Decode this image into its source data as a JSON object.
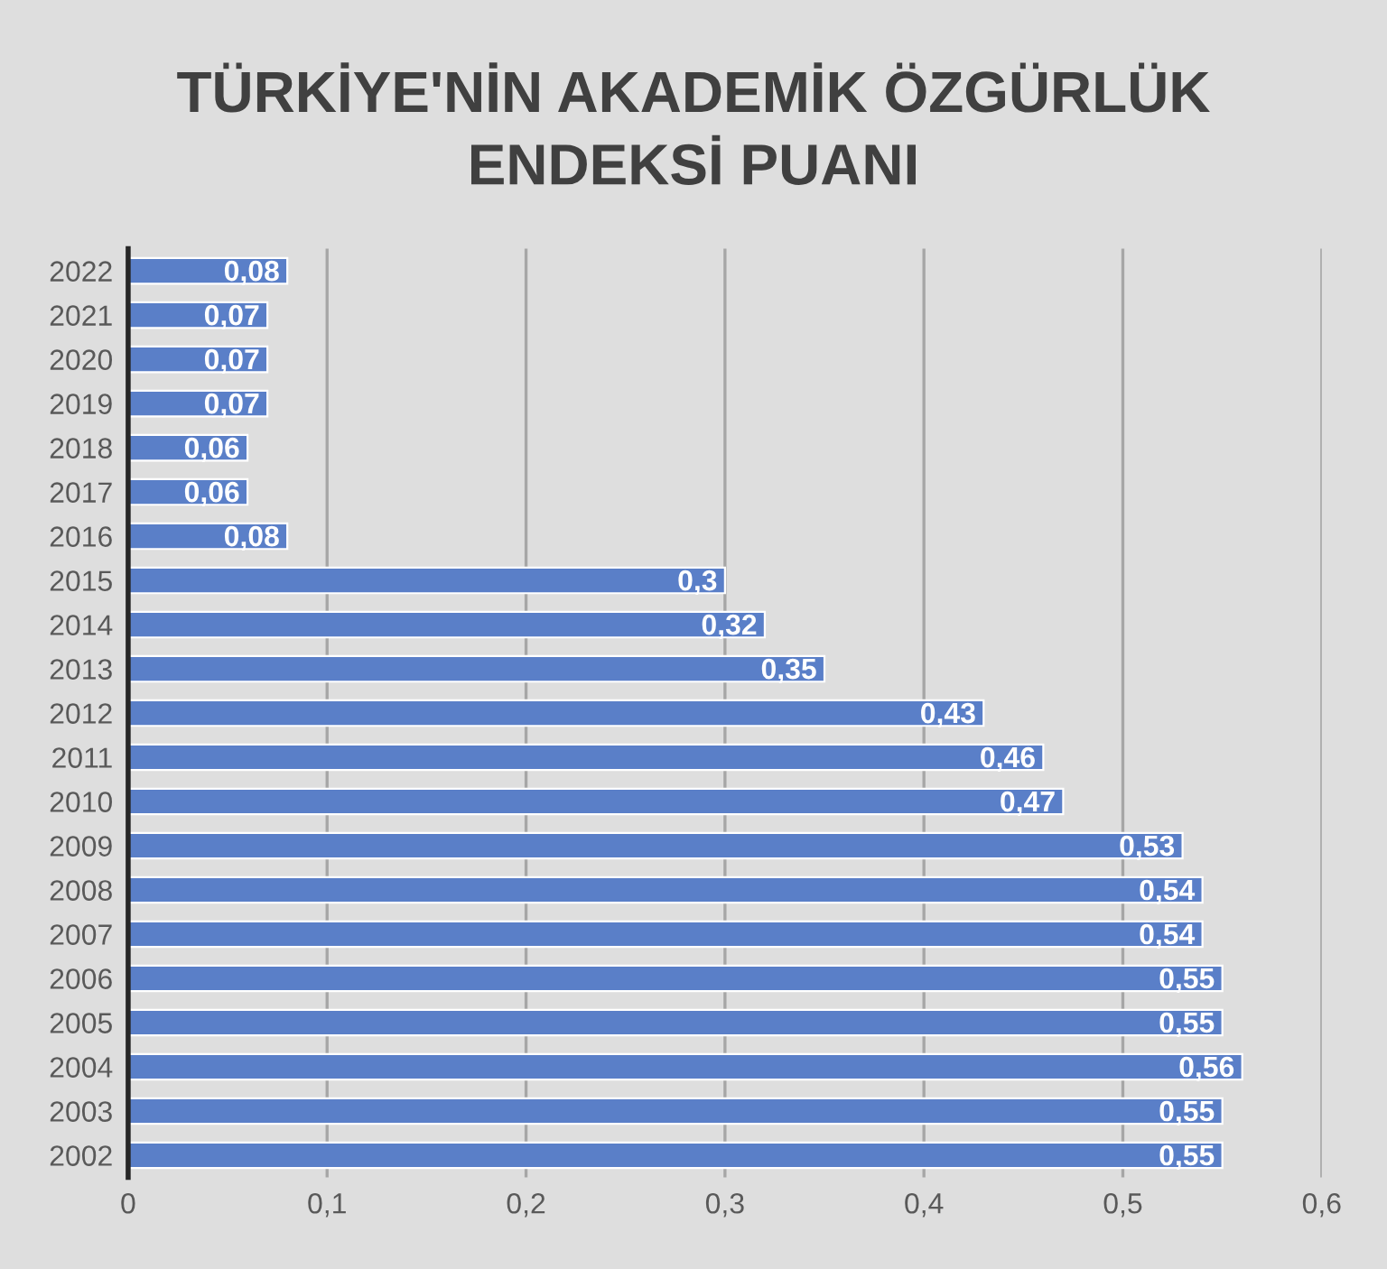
{
  "chart_data": {
    "type": "bar",
    "orientation": "horizontal",
    "title": "TÜRKİYE'NİN AKADEMİK ÖZGÜRLÜK\nENDEKSİ PUANI",
    "categories": [
      "2022",
      "2021",
      "2020",
      "2019",
      "2018",
      "2017",
      "2016",
      "2015",
      "2014",
      "2013",
      "2012",
      "2011",
      "2010",
      "2009",
      "2008",
      "2007",
      "2006",
      "2005",
      "2004",
      "2003",
      "2002"
    ],
    "values": [
      0.08,
      0.07,
      0.07,
      0.07,
      0.06,
      0.06,
      0.08,
      0.3,
      0.32,
      0.35,
      0.43,
      0.46,
      0.47,
      0.53,
      0.54,
      0.54,
      0.55,
      0.55,
      0.56,
      0.55,
      0.55
    ],
    "value_labels": [
      "0,08",
      "0,07",
      "0,07",
      "0,07",
      "0,06",
      "0,06",
      "0,08",
      "0,3",
      "0,32",
      "0,35",
      "0,43",
      "0,46",
      "0,47",
      "0,53",
      "0,54",
      "0,54",
      "0,55",
      "0,55",
      "0,56",
      "0,55",
      "0,55"
    ],
    "color": "#5a7fc8",
    "xlim": [
      0,
      0.6
    ],
    "xticks": [
      0,
      {
        "value": 0.1,
        "label": "0,1"
      },
      {
        "value": 0.2,
        "label": "0,2"
      },
      {
        "value": 0.3,
        "label": "0,3"
      },
      {
        "value": 0.4,
        "label": "0,4"
      },
      {
        "value": 0.5,
        "label": "0,5"
      },
      {
        "value": 0.6,
        "label": "0,6"
      }
    ],
    "grid": "x",
    "legend": false
  }
}
